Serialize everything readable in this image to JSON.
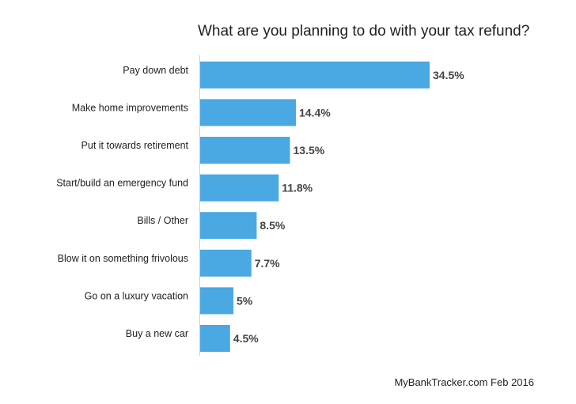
{
  "chart_data": {
    "type": "bar",
    "orientation": "horizontal",
    "title": "What are you planning to do with your tax refund?",
    "categories": [
      "Pay down debt",
      "Make home improvements",
      "Put it towards retirement",
      "Start/build an emergency fund",
      "Bills / Other",
      "Blow it on something frivolous",
      "Go on a luxury vacation",
      "Buy a new car"
    ],
    "values": [
      34.5,
      14.4,
      13.5,
      11.8,
      8.5,
      7.7,
      5,
      4.5
    ],
    "data_labels": [
      "34.5%",
      "14.4%",
      "13.5%",
      "11.8%",
      "8.5%",
      "7.7%",
      "5%",
      "4.5%"
    ],
    "xlim": [
      0,
      40
    ],
    "bar_color": "#4aa8e3",
    "grid": false,
    "legend": "none"
  },
  "source": "MyBankTracker.com Feb 2016"
}
